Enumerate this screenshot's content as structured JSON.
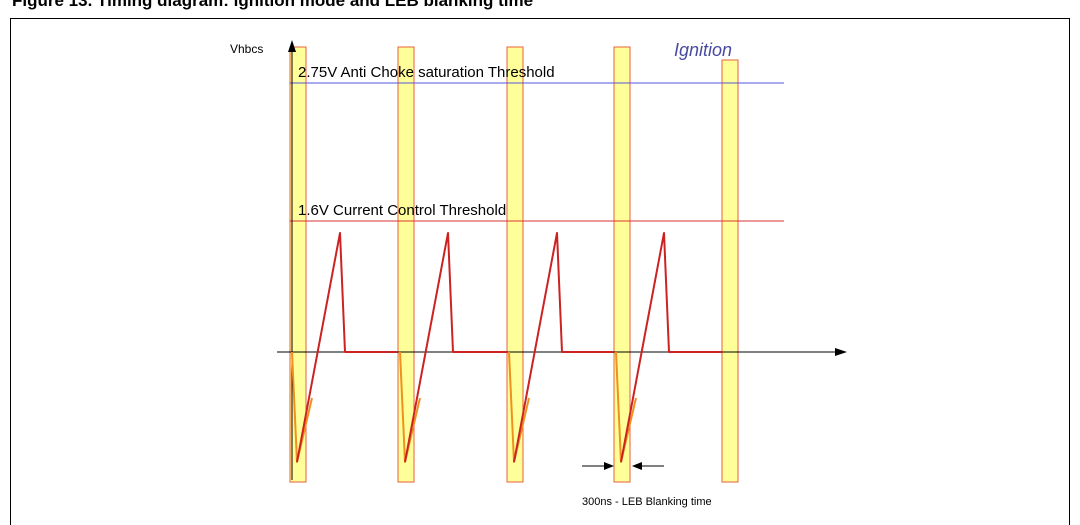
{
  "caption": "Figure 13.   Timing diagram: ignition mode and LEB blanking time",
  "diagram": {
    "y_axis_label": "Vhbcs",
    "mode_label": "Ignition",
    "threshold_high": {
      "label": "2.75V Anti Choke saturation Threshold",
      "color": "#5555dd"
    },
    "threshold_low": {
      "label": "1.6V Current Control Threshold",
      "color": "#dd3333"
    },
    "blanking_note": "300ns - LEB Blanking time",
    "colors": {
      "blanking_fill": "#ffff99",
      "blanking_stroke": "#e8603c",
      "waveform_dark": "#cc2222",
      "waveform_orange": "#f09020",
      "mode_text": "#4a4aa0"
    },
    "blanking_window_count": 5,
    "waveform_pulse_count": 4
  }
}
